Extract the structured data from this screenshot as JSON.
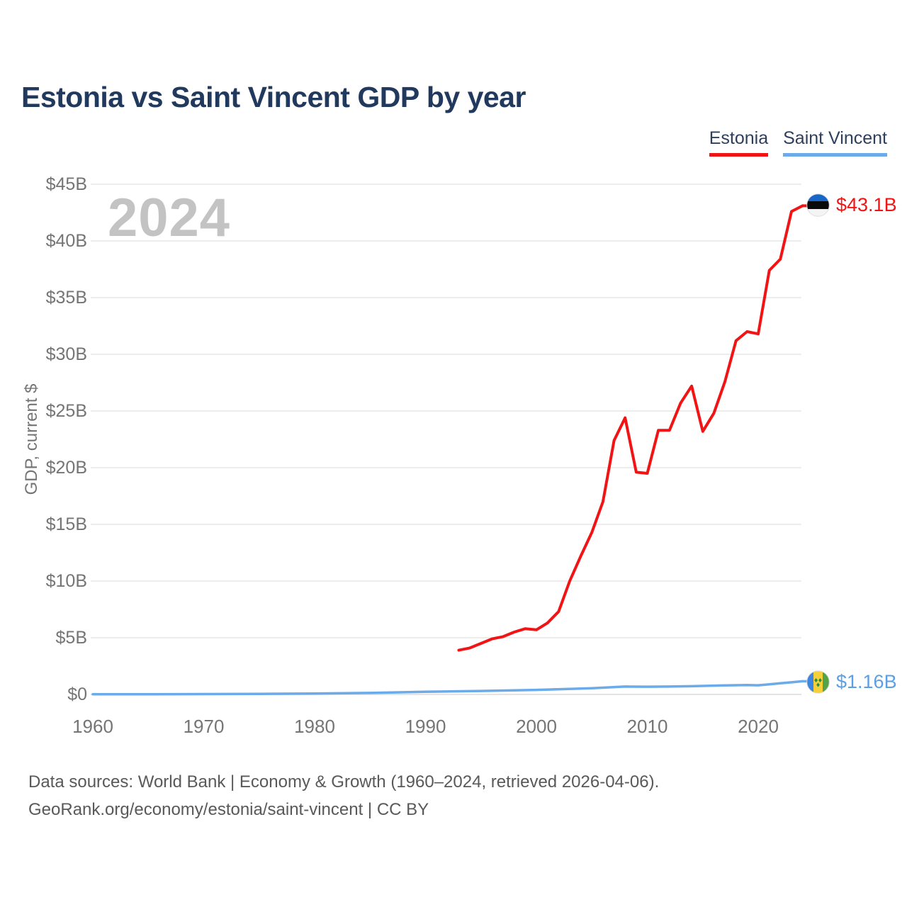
{
  "title": "Estonia vs Saint Vincent GDP by year",
  "watermark": "2024",
  "legend": {
    "items": [
      {
        "label": "Estonia",
        "color": "#f21414"
      },
      {
        "label": "Saint Vincent",
        "color": "#6babe9"
      }
    ]
  },
  "footer": {
    "line1": "Data sources: World Bank | Economy & Growth (1960–2024, retrieved 2026-04-06).",
    "line2": "GeoRank.org/economy/estonia/saint-vincent | CC BY"
  },
  "chart_data": {
    "type": "line",
    "title": "Estonia vs Saint Vincent GDP by year",
    "xlabel": "",
    "ylabel": "GDP, current $",
    "x_range": [
      1960,
      2024
    ],
    "ylim": [
      0,
      45
    ],
    "grid": "horizontal",
    "legend_position": "top-right",
    "x_ticks": [
      {
        "label": "1960",
        "value": 1960
      },
      {
        "label": "1970",
        "value": 1970
      },
      {
        "label": "1980",
        "value": 1980
      },
      {
        "label": "1990",
        "value": 1990
      },
      {
        "label": "2000",
        "value": 2000
      },
      {
        "label": "2010",
        "value": 2010
      },
      {
        "label": "2020",
        "value": 2020
      }
    ],
    "y_ticks": [
      {
        "label": "$0",
        "value": 0
      },
      {
        "label": "$5B",
        "value": 5
      },
      {
        "label": "$10B",
        "value": 10
      },
      {
        "label": "$15B",
        "value": 15
      },
      {
        "label": "$20B",
        "value": 20
      },
      {
        "label": "$25B",
        "value": 25
      },
      {
        "label": "$30B",
        "value": 30
      },
      {
        "label": "$35B",
        "value": 35
      },
      {
        "label": "$40B",
        "value": 40
      },
      {
        "label": "$45B",
        "value": 45
      }
    ],
    "series": [
      {
        "name": "Estonia",
        "color": "#f21414",
        "stroke_width": 4,
        "end_label": "$43.1B",
        "flag": "estonia-flag",
        "points": [
          [
            1993,
            3.9
          ],
          [
            1994,
            4.1
          ],
          [
            1995,
            4.5
          ],
          [
            1996,
            4.9
          ],
          [
            1997,
            5.1
          ],
          [
            1998,
            5.5
          ],
          [
            1999,
            5.8
          ],
          [
            2000,
            5.7
          ],
          [
            2001,
            6.3
          ],
          [
            2002,
            7.3
          ],
          [
            2003,
            10.0
          ],
          [
            2004,
            12.2
          ],
          [
            2005,
            14.3
          ],
          [
            2006,
            17.0
          ],
          [
            2007,
            22.4
          ],
          [
            2008,
            24.4
          ],
          [
            2009,
            19.6
          ],
          [
            2010,
            19.5
          ],
          [
            2011,
            23.3
          ],
          [
            2012,
            23.3
          ],
          [
            2013,
            25.7
          ],
          [
            2014,
            27.2
          ],
          [
            2015,
            23.2
          ],
          [
            2016,
            24.8
          ],
          [
            2017,
            27.6
          ],
          [
            2018,
            31.2
          ],
          [
            2019,
            32.0
          ],
          [
            2020,
            31.8
          ],
          [
            2021,
            37.4
          ],
          [
            2022,
            38.4
          ],
          [
            2023,
            42.6
          ],
          [
            2024,
            43.1
          ]
        ]
      },
      {
        "name": "Saint Vincent",
        "color": "#6babe9",
        "stroke_width": 3.5,
        "end_label": "$1.16B",
        "flag": "saint-vincent-flag",
        "points": [
          [
            1960,
            0.013
          ],
          [
            1965,
            0.019
          ],
          [
            1970,
            0.029
          ],
          [
            1975,
            0.046
          ],
          [
            1980,
            0.08
          ],
          [
            1985,
            0.133
          ],
          [
            1990,
            0.24
          ],
          [
            1995,
            0.305
          ],
          [
            2000,
            0.399
          ],
          [
            2005,
            0.551
          ],
          [
            2008,
            0.695
          ],
          [
            2010,
            0.681
          ],
          [
            2012,
            0.693
          ],
          [
            2014,
            0.727
          ],
          [
            2016,
            0.775
          ],
          [
            2018,
            0.811
          ],
          [
            2019,
            0.825
          ],
          [
            2020,
            0.807
          ],
          [
            2021,
            0.89
          ],
          [
            2022,
            0.98
          ],
          [
            2023,
            1.07
          ],
          [
            2024,
            1.16
          ]
        ]
      }
    ]
  }
}
